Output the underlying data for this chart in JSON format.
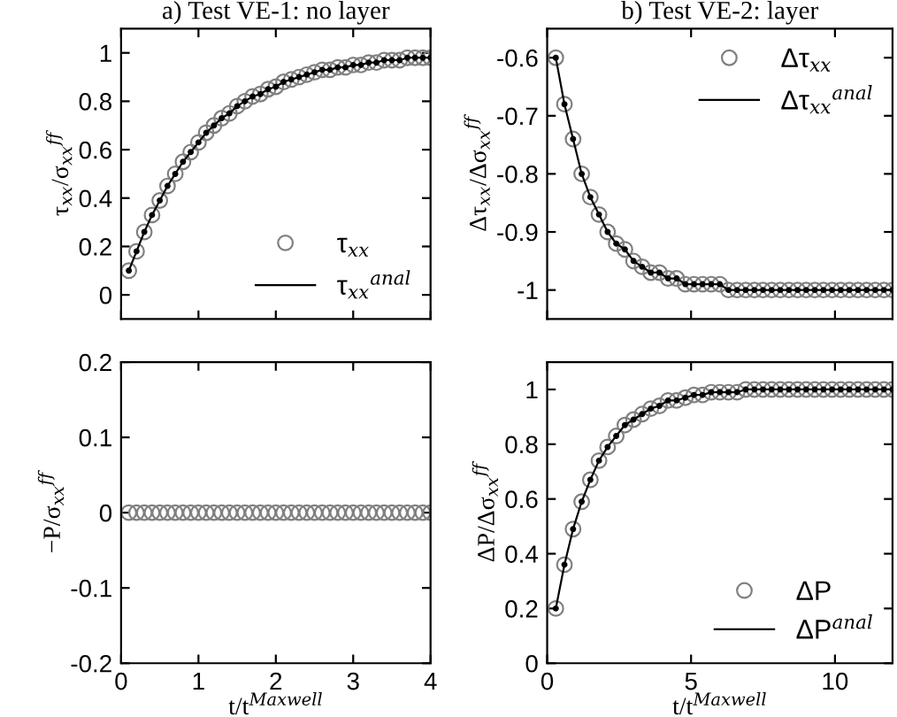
{
  "chart_data": [
    {
      "type": "line",
      "title": "a) Test VE-1: no layer",
      "ylabel": "τ$_{xx}$/σ$_{xx}$$^{ff}$",
      "xlim": [
        0,
        4
      ],
      "xticks": [
        0,
        1,
        2,
        3,
        4
      ],
      "ylim": [
        -0.1,
        1.1
      ],
      "yticks": [
        0,
        0.2,
        0.4,
        0.6,
        0.8,
        1
      ],
      "tick_labels": "y",
      "grid": false,
      "legend": "bottom right",
      "series": [
        {
          "name": "τ$_{xx}$",
          "type": "scatter",
          "marker": "circle",
          "color": "#808080",
          "x": [
            0.1,
            0.2,
            0.3,
            0.4,
            0.5,
            0.6,
            0.7,
            0.8,
            0.9,
            1.0,
            1.1,
            1.2,
            1.3,
            1.4,
            1.5,
            1.6,
            1.7,
            1.8,
            1.9,
            2.0,
            2.1,
            2.2,
            2.3,
            2.4,
            2.5,
            2.6,
            2.7,
            2.8,
            2.9,
            3.0,
            3.1,
            3.2,
            3.3,
            3.4,
            3.5,
            3.6,
            3.7,
            3.8,
            3.9,
            4.0
          ],
          "values": [
            0.1,
            0.18,
            0.26,
            0.33,
            0.39,
            0.45,
            0.5,
            0.55,
            0.59,
            0.63,
            0.67,
            0.7,
            0.73,
            0.75,
            0.78,
            0.8,
            0.82,
            0.83,
            0.85,
            0.86,
            0.88,
            0.89,
            0.9,
            0.91,
            0.92,
            0.93,
            0.93,
            0.94,
            0.94,
            0.95,
            0.95,
            0.96,
            0.96,
            0.97,
            0.97,
            0.97,
            0.98,
            0.98,
            0.98,
            0.98
          ]
        },
        {
          "name": "τ$_{xx}$$^{anal}$",
          "marker": "circle",
          "color": "#000000",
          "x": [
            0.1,
            0.2,
            0.3,
            0.4,
            0.5,
            0.6,
            0.7,
            0.8,
            0.9,
            1.0,
            1.1,
            1.2,
            1.3,
            1.4,
            1.5,
            1.6,
            1.7,
            1.8,
            1.9,
            2.0,
            2.1,
            2.2,
            2.3,
            2.4,
            2.5,
            2.6,
            2.7,
            2.8,
            2.9,
            3.0,
            3.1,
            3.2,
            3.3,
            3.4,
            3.5,
            3.6,
            3.7,
            3.8,
            3.9,
            4.0
          ],
          "values": [
            0.1,
            0.18,
            0.26,
            0.33,
            0.39,
            0.45,
            0.5,
            0.55,
            0.59,
            0.63,
            0.67,
            0.7,
            0.73,
            0.75,
            0.78,
            0.8,
            0.82,
            0.83,
            0.85,
            0.86,
            0.88,
            0.89,
            0.9,
            0.91,
            0.92,
            0.93,
            0.93,
            0.94,
            0.94,
            0.95,
            0.95,
            0.96,
            0.96,
            0.97,
            0.97,
            0.97,
            0.98,
            0.98,
            0.98,
            0.98
          ]
        }
      ]
    },
    {
      "type": "line",
      "title": "b) Test VE-2: layer",
      "ylabel": "Δτ$_{xx}$/Δσ$_{xx}$$^{ff}$",
      "xlim": [
        0,
        12
      ],
      "xticks": [
        0,
        5,
        10
      ],
      "ylim": [
        -1.05,
        -0.55
      ],
      "yticks": [
        -1,
        -0.9,
        -0.8,
        -0.7,
        -0.6
      ],
      "tick_labels": "y",
      "grid": false,
      "legend": "top right",
      "series": [
        {
          "name": "Δτ$_{xx}$",
          "type": "scatter",
          "marker": "circle",
          "color": "#808080",
          "x": [
            0.3,
            0.6,
            0.9,
            1.2,
            1.5,
            1.8,
            2.1,
            2.4,
            2.7,
            3.0,
            3.3,
            3.6,
            3.9,
            4.2,
            4.5,
            4.8,
            5.1,
            5.4,
            5.7,
            6.0,
            6.3,
            6.6,
            6.9,
            7.2,
            7.5,
            7.8,
            8.1,
            8.4,
            8.7,
            9.0,
            9.3,
            9.6,
            9.9,
            10.2,
            10.5,
            10.8,
            11.1,
            11.4,
            11.7,
            12.0
          ],
          "values": [
            -0.6,
            -0.68,
            -0.74,
            -0.8,
            -0.84,
            -0.87,
            -0.9,
            -0.92,
            -0.93,
            -0.95,
            -0.96,
            -0.97,
            -0.97,
            -0.98,
            -0.98,
            -0.99,
            -0.99,
            -0.99,
            -0.99,
            -0.99,
            -1,
            -1,
            -1,
            -1,
            -1,
            -1,
            -1,
            -1,
            -1,
            -1,
            -1,
            -1,
            -1,
            -1,
            -1,
            -1,
            -1,
            -1,
            -1,
            -1
          ]
        },
        {
          "name": "Δτ$_{xx}$$^{anal}$",
          "marker": "circle",
          "color": "#000000",
          "x": [
            0.3,
            0.6,
            0.9,
            1.2,
            1.5,
            1.8,
            2.1,
            2.4,
            2.7,
            3.0,
            3.3,
            3.6,
            3.9,
            4.2,
            4.5,
            4.8,
            5.1,
            5.4,
            5.7,
            6.0,
            6.3,
            6.6,
            6.9,
            7.2,
            7.5,
            7.8,
            8.1,
            8.4,
            8.7,
            9.0,
            9.3,
            9.6,
            9.9,
            10.2,
            10.5,
            10.8,
            11.1,
            11.4,
            11.7,
            12.0
          ],
          "values": [
            -0.6,
            -0.68,
            -0.74,
            -0.8,
            -0.84,
            -0.87,
            -0.9,
            -0.92,
            -0.93,
            -0.95,
            -0.96,
            -0.97,
            -0.97,
            -0.98,
            -0.98,
            -0.99,
            -0.99,
            -0.99,
            -0.99,
            -0.99,
            -1,
            -1,
            -1,
            -1,
            -1,
            -1,
            -1,
            -1,
            -1,
            -1,
            -1,
            -1,
            -1,
            -1,
            -1,
            -1,
            -1,
            -1,
            -1,
            -1
          ]
        }
      ]
    },
    {
      "type": "scatter",
      "xlabel": "t/t$^{Maxwell}$",
      "ylabel": "−P/σ$_{xx}$$^{ff}$",
      "xlim": [
        0,
        4
      ],
      "xticks": [
        0,
        1,
        2,
        3,
        4
      ],
      "ylim": [
        -0.2,
        0.2
      ],
      "yticks": [
        -0.2,
        -0.1,
        0,
        0.1,
        0.2
      ],
      "grid": false,
      "legend": false,
      "series": [
        {
          "marker": "circle",
          "color": "#808080",
          "x": [
            0.1,
            0.2,
            0.3,
            0.4,
            0.5,
            0.6,
            0.7,
            0.8,
            0.9,
            1.0,
            1.1,
            1.2,
            1.3,
            1.4,
            1.5,
            1.6,
            1.7,
            1.8,
            1.9,
            2.0,
            2.1,
            2.2,
            2.3,
            2.4,
            2.5,
            2.6,
            2.7,
            2.8,
            2.9,
            3.0,
            3.1,
            3.2,
            3.3,
            3.4,
            3.5,
            3.6,
            3.7,
            3.8,
            3.9,
            4.0
          ],
          "values": [
            0,
            0,
            0,
            0,
            0,
            0,
            0,
            0,
            0,
            0,
            0,
            0,
            0,
            0,
            0,
            0,
            0,
            0,
            0,
            0,
            0,
            0,
            0,
            0,
            0,
            0,
            0,
            0,
            0,
            0,
            0,
            0,
            0,
            0,
            0,
            0,
            0,
            0,
            0,
            0
          ]
        }
      ]
    },
    {
      "type": "line",
      "xlabel": "t/t$^{Maxwell}$",
      "ylabel": "ΔP/Δσ$_{xx}$$^{ff}$",
      "xlim": [
        0,
        12
      ],
      "xticks": [
        0,
        5,
        10
      ],
      "ylim": [
        0,
        1.1
      ],
      "yticks": [
        0,
        0.2,
        0.4,
        0.6,
        0.8,
        1
      ],
      "grid": false,
      "legend": "bottom right",
      "series": [
        {
          "name": "ΔP",
          "type": "scatter",
          "marker": "circle",
          "color": "#808080",
          "x": [
            0.3,
            0.6,
            0.9,
            1.2,
            1.5,
            1.8,
            2.1,
            2.4,
            2.7,
            3.0,
            3.3,
            3.6,
            3.9,
            4.2,
            4.5,
            4.8,
            5.1,
            5.4,
            5.7,
            6.0,
            6.3,
            6.6,
            6.9,
            7.2,
            7.5,
            7.8,
            8.1,
            8.4,
            8.7,
            9.0,
            9.3,
            9.6,
            9.9,
            10.2,
            10.5,
            10.8,
            11.1,
            11.4,
            11.7,
            12.0
          ],
          "values": [
            0.2,
            0.36,
            0.49,
            0.59,
            0.67,
            0.74,
            0.79,
            0.83,
            0.87,
            0.89,
            0.91,
            0.93,
            0.94,
            0.96,
            0.96,
            0.97,
            0.98,
            0.98,
            0.99,
            0.99,
            0.99,
            0.99,
            1,
            1,
            1,
            1,
            1,
            1,
            1,
            1,
            1,
            1,
            1,
            1,
            1,
            1,
            1,
            1,
            1,
            1
          ]
        },
        {
          "name": "ΔP$^{anal}$",
          "marker": "circle",
          "color": "#000000",
          "x": [
            0.3,
            0.6,
            0.9,
            1.2,
            1.5,
            1.8,
            2.1,
            2.4,
            2.7,
            3.0,
            3.3,
            3.6,
            3.9,
            4.2,
            4.5,
            4.8,
            5.1,
            5.4,
            5.7,
            6.0,
            6.3,
            6.6,
            6.9,
            7.2,
            7.5,
            7.8,
            8.1,
            8.4,
            8.7,
            9.0,
            9.3,
            9.6,
            9.9,
            10.2,
            10.5,
            10.8,
            11.1,
            11.4,
            11.7,
            12.0
          ],
          "values": [
            0.2,
            0.36,
            0.49,
            0.59,
            0.67,
            0.74,
            0.79,
            0.83,
            0.87,
            0.89,
            0.91,
            0.93,
            0.94,
            0.96,
            0.96,
            0.97,
            0.98,
            0.98,
            0.99,
            0.99,
            0.99,
            0.99,
            1,
            1,
            1,
            1,
            1,
            1,
            1,
            1,
            1,
            1,
            1,
            1,
            1,
            1,
            1,
            1,
            1,
            1
          ]
        }
      ]
    }
  ]
}
